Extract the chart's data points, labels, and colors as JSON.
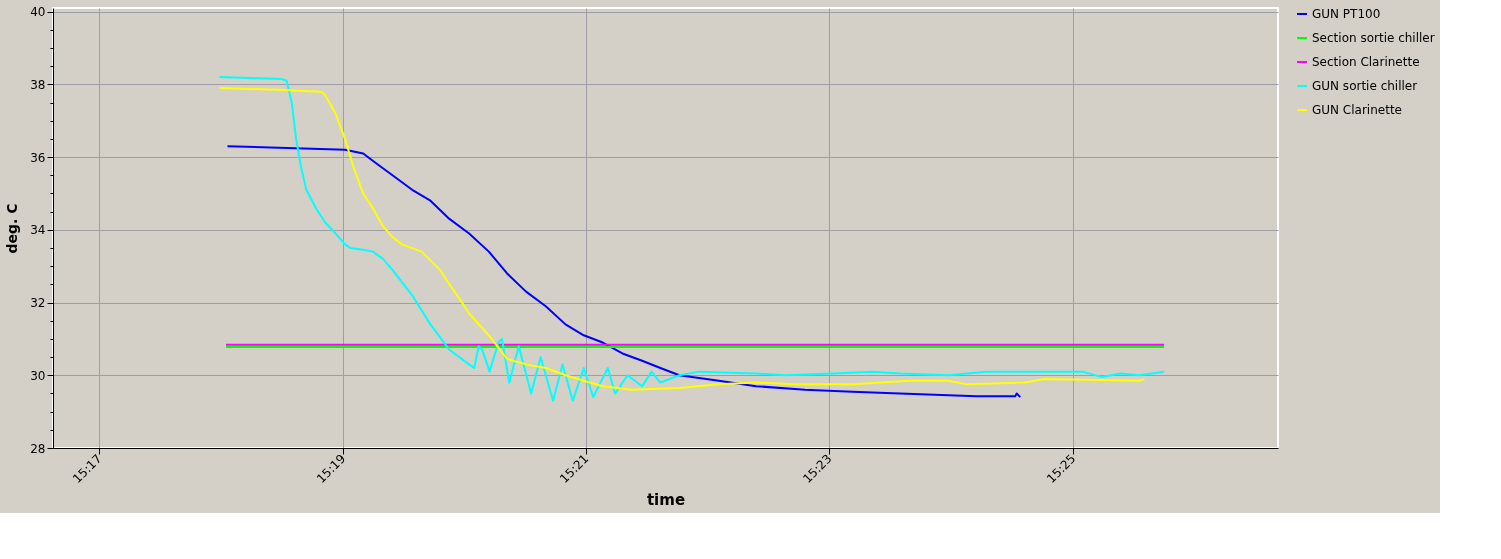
{
  "chart_data": {
    "type": "line",
    "xlabel": "time",
    "ylabel": "deg. C",
    "xlim": [
      15.277,
      15.4448
    ],
    "xticks": [
      {
        "value": 15.2833,
        "label": "15:17"
      },
      {
        "value": 15.3167,
        "label": "15:19"
      },
      {
        "value": 15.35,
        "label": "15:21"
      },
      {
        "value": 15.3833,
        "label": "15:23"
      },
      {
        "value": 15.4167,
        "label": "15:25"
      }
    ],
    "ylim": [
      28,
      40.1
    ],
    "yticks": [
      28,
      {
        "value": 28.5,
        "label": null
      },
      {
        "value": 29,
        "label": null
      },
      {
        "value": 29.5,
        "label": null
      },
      30,
      {
        "value": 30.5,
        "label": null
      },
      {
        "value": 31,
        "label": null
      },
      {
        "value": 31.5,
        "label": null
      },
      32,
      {
        "value": 32.5,
        "label": null
      },
      {
        "value": 33,
        "label": null
      },
      {
        "value": 33.5,
        "label": null
      },
      34,
      {
        "value": 34.5,
        "label": null
      },
      {
        "value": 35,
        "label": null
      },
      {
        "value": 35.5,
        "label": null
      },
      36,
      {
        "value": 36.5,
        "label": null
      },
      {
        "value": 37,
        "label": null
      },
      {
        "value": 37.5,
        "label": null
      },
      38,
      {
        "value": 38.5,
        "label": null
      },
      {
        "value": 39,
        "label": null
      },
      {
        "value": 39.5,
        "label": null
      },
      40
    ],
    "grid": true,
    "legend": "right",
    "marker": "none",
    "line_style": "solid",
    "series": [
      {
        "name": "GUN PT100",
        "color": "#0000ff",
        "x": [
          15.3009,
          15.317,
          15.3195,
          15.3208,
          15.3235,
          15.3262,
          15.3287,
          15.3313,
          15.334,
          15.3367,
          15.3392,
          15.3418,
          15.3445,
          15.3472,
          15.3497,
          15.3523,
          15.355,
          15.3577,
          15.3602,
          15.3628,
          15.3682,
          15.3733,
          15.38,
          15.3865,
          15.393,
          15.3997,
          15.4035,
          15.4088,
          15.409,
          15.4095
        ],
        "values": [
          36.3,
          36.2,
          36.1,
          35.9,
          35.5,
          35.1,
          34.8,
          34.3,
          33.9,
          33.4,
          32.8,
          32.3,
          31.9,
          31.4,
          31.1,
          30.9,
          30.6,
          30.4,
          30.2,
          30.0,
          29.85,
          29.7,
          29.6,
          29.55,
          29.5,
          29.45,
          29.42,
          29.42,
          29.5,
          29.4
        ]
      },
      {
        "name": "Section sortie chiller",
        "color": "#00ff00",
        "x": [
          15.3007,
          15.4292
        ],
        "values": [
          30.78,
          30.78
        ]
      },
      {
        "name": "Section Clarinette",
        "color": "#ff00ff",
        "x": [
          15.3007,
          15.4292
        ],
        "values": [
          30.84,
          30.84
        ]
      },
      {
        "name": "GUN sortie chiller",
        "color": "#00ffff",
        "x": [
          15.2998,
          15.3083,
          15.309,
          15.3097,
          15.3103,
          15.311,
          15.3117,
          15.313,
          15.3143,
          15.3157,
          15.317,
          15.3177,
          15.3195,
          15.3208,
          15.3222,
          15.3235,
          15.3262,
          15.3287,
          15.3313,
          15.334,
          15.3347,
          15.3353,
          15.3358,
          15.3368,
          15.338,
          15.3385,
          15.3395,
          15.3408,
          15.3425,
          15.3438,
          15.3455,
          15.3468,
          15.3482,
          15.3497,
          15.351,
          15.353,
          15.354,
          15.3557,
          15.3577,
          15.359,
          15.3602,
          15.3628,
          15.3655,
          15.3733,
          15.3773,
          15.3838,
          15.3892,
          15.393,
          15.3997,
          15.4048,
          15.418,
          15.4207,
          15.4232,
          15.4258,
          15.4292
        ],
        "values": [
          38.2,
          38.15,
          38.1,
          37.5,
          36.5,
          35.7,
          35.1,
          34.6,
          34.2,
          33.9,
          33.6,
          33.5,
          33.45,
          33.4,
          33.2,
          32.9,
          32.2,
          31.4,
          30.7,
          30.3,
          30.2,
          30.8,
          30.7,
          30.1,
          30.9,
          31.0,
          29.8,
          30.8,
          29.5,
          30.5,
          29.3,
          30.3,
          29.3,
          30.2,
          29.4,
          30.2,
          29.5,
          30.0,
          29.7,
          30.1,
          29.8,
          30.0,
          30.1,
          30.05,
          30.0,
          30.05,
          30.1,
          30.05,
          30.0,
          30.1,
          30.1,
          29.95,
          30.05,
          30.0,
          30.1
        ]
      },
      {
        "name": "GUN Clarinette",
        "color": "#ffff00",
        "x": [
          15.2998,
          15.3077,
          15.3137,
          15.3143,
          15.3157,
          15.317,
          15.3182,
          15.3195,
          15.3208,
          15.3222,
          15.3235,
          15.3248,
          15.3275,
          15.33,
          15.3313,
          15.3327,
          15.334,
          15.3367,
          15.3392,
          15.3418,
          15.3445,
          15.3472,
          15.3497,
          15.3523,
          15.3563,
          15.3628,
          15.3682,
          15.3733,
          15.3787,
          15.3865,
          15.3943,
          15.3997,
          15.4022,
          15.4102,
          15.4127,
          15.4258,
          15.4265
        ],
        "values": [
          37.9,
          37.85,
          37.8,
          37.7,
          37.2,
          36.5,
          35.7,
          35.0,
          34.6,
          34.1,
          33.8,
          33.6,
          33.4,
          32.9,
          32.5,
          32.1,
          31.7,
          31.1,
          30.45,
          30.3,
          30.2,
          30.0,
          29.85,
          29.7,
          29.6,
          29.65,
          29.75,
          29.8,
          29.75,
          29.75,
          29.85,
          29.85,
          29.75,
          29.8,
          29.9,
          29.85,
          29.9
        ]
      }
    ]
  }
}
